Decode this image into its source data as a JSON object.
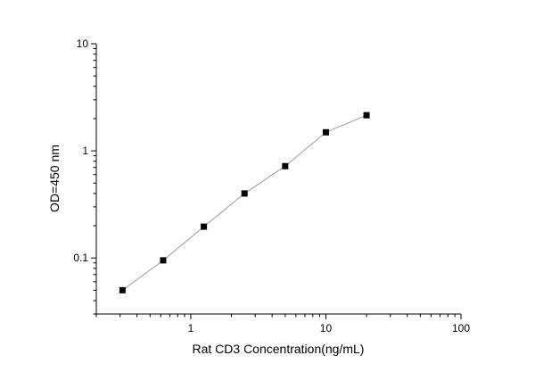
{
  "chart_data": {
    "type": "line",
    "title": "",
    "xlabel": "Rat CD3 Concentration(ng/mL)",
    "ylabel": "OD=450 nm",
    "xscale": "log",
    "yscale": "log",
    "xlim": [
      0.2,
      100
    ],
    "ylim": [
      0.03,
      10
    ],
    "xticks": [
      1,
      10,
      100
    ],
    "xtick_labels": [
      "1",
      "10",
      "100"
    ],
    "yticks": [
      0.1,
      1,
      10
    ],
    "ytick_labels": [
      "0.1",
      "1",
      "10"
    ],
    "grid": false,
    "marker": "square",
    "colors": {
      "line": "#9a9a9a",
      "marker": "#000000"
    },
    "series": [
      {
        "x": [
          0.3125,
          0.625,
          1.25,
          2.5,
          5,
          10,
          20
        ],
        "y": [
          0.05,
          0.095,
          0.196,
          0.4,
          0.72,
          1.49,
          2.15
        ]
      }
    ]
  }
}
